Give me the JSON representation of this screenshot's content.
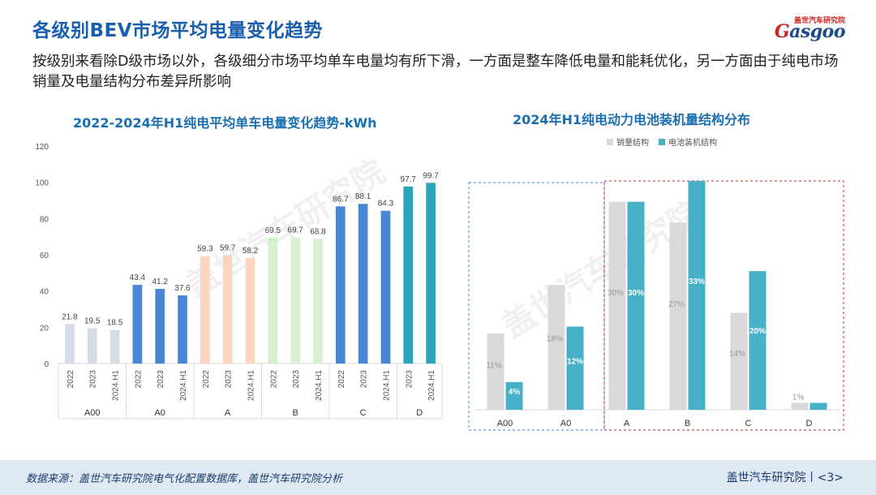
{
  "header": {
    "title": "各级别BEV市场平均电量变化趋势",
    "subtitle": "按级别来看除D级市场以外，各级细分市场平均单车电量均有所下滑，一方面是整车降低电量和能耗优化，另一方面由于纯电市场销量及电量结构分布差异所影响",
    "logo_cn": "盖世汽车研究院",
    "logo_en": "Gasgoo"
  },
  "footer": {
    "source": "数据来源：盖世汽车研究院电气化配置数据库，盖世汽车研究院分析",
    "brand": "盖世汽车研究院丨<3>"
  },
  "watermark": {
    "cn": "盖世汽车研究院"
  },
  "colors": {
    "title": "#1a5fad",
    "A00": "#d6dce5",
    "A0": "#4a86d4",
    "A": "#fbd5bd",
    "B": "#d9efd2",
    "C": "#4a86d4",
    "D": "#2aa5b8",
    "sales": "#d9d9d9",
    "battery": "#45b0c6"
  },
  "chart_data": [
    {
      "type": "bar",
      "title": "2022-2024年H1纯电平均单车电量变化趋势-kWh",
      "ylim": [
        0,
        120
      ],
      "yticks": [
        0,
        20,
        40,
        60,
        80,
        100,
        120
      ],
      "grid": false,
      "groups": [
        {
          "name": "A00",
          "categories": [
            "2022",
            "2023",
            "2024.H1"
          ],
          "values": [
            21.8,
            19.5,
            18.5
          ],
          "labels": [
            "21.8",
            "19.5",
            "18.5"
          ]
        },
        {
          "name": "A0",
          "categories": [
            "2022",
            "2023",
            "2024.H1"
          ],
          "values": [
            43.4,
            41.2,
            37.6
          ],
          "labels": [
            "43.4",
            "41.2",
            "37.6"
          ]
        },
        {
          "name": "A",
          "categories": [
            "2022",
            "2023",
            "2024.H1"
          ],
          "values": [
            59.3,
            59.7,
            58.2
          ],
          "labels": [
            "59.3",
            "59.7",
            "58.2"
          ]
        },
        {
          "name": "B",
          "categories": [
            "2022",
            "2023",
            "2024.H1"
          ],
          "values": [
            69.5,
            69.7,
            68.8
          ],
          "labels": [
            "69.5",
            "69.7",
            "68.8"
          ]
        },
        {
          "name": "C",
          "categories": [
            "2022",
            "2023",
            "2024.H1"
          ],
          "values": [
            86.7,
            88.1,
            84.3
          ],
          "labels": [
            "86.7",
            "88.1",
            "84.3"
          ]
        },
        {
          "name": "D",
          "categories": [
            "2023",
            "2024.H1"
          ],
          "values": [
            97.7,
            99.7
          ],
          "labels": [
            "97.7",
            "99.7"
          ]
        }
      ]
    },
    {
      "type": "bar",
      "title": "2024年H1纯电动力电池装机量结构分布",
      "categories": [
        "A00",
        "A0",
        "A",
        "B",
        "C",
        "D"
      ],
      "legend": "top",
      "series": [
        {
          "name": "销量结构",
          "values": [
            11,
            18,
            30,
            27,
            14,
            1
          ],
          "labels": [
            "11%",
            "18%",
            "30%",
            "27%",
            "14%",
            "1%"
          ]
        },
        {
          "name": "电池装机结构",
          "values": [
            4,
            12,
            30,
            33,
            20,
            1
          ],
          "labels": [
            "4%",
            "12%",
            "30%",
            "33%",
            "20%",
            ""
          ]
        }
      ]
    }
  ]
}
